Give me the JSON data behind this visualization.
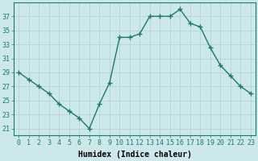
{
  "x": [
    0,
    1,
    2,
    3,
    4,
    5,
    6,
    7,
    8,
    9,
    10,
    11,
    12,
    13,
    14,
    15,
    16,
    17,
    18,
    19,
    20,
    21,
    22,
    23
  ],
  "y": [
    29,
    28,
    27,
    26,
    24.5,
    23.5,
    22.5,
    21,
    24.5,
    27.5,
    34,
    34,
    34.5,
    37,
    37,
    37,
    38,
    36,
    35.5,
    32.5,
    30,
    28.5,
    27,
    26
  ],
  "xlabel": "Humidex (Indice chaleur)",
  "line_color": "#1a7a6e",
  "bg_color": "#cce8ea",
  "grid_color": "#b0d0d4",
  "ylim_min": 20,
  "ylim_max": 39,
  "yticks": [
    21,
    23,
    25,
    27,
    29,
    31,
    33,
    35,
    37
  ],
  "xticks": [
    0,
    1,
    2,
    3,
    4,
    5,
    6,
    7,
    8,
    9,
    10,
    11,
    12,
    13,
    14,
    15,
    16,
    17,
    18,
    19,
    20,
    21,
    22,
    23
  ],
  "xtick_labels": [
    "0",
    "1",
    "2",
    "3",
    "4",
    "5",
    "6",
    "7",
    "8",
    "9",
    "10",
    "11",
    "12",
    "13",
    "14",
    "15",
    "16",
    "17",
    "18",
    "19",
    "20",
    "21",
    "22",
    "23"
  ],
  "xlabel_fontsize": 7,
  "tick_fontsize": 6,
  "marker_size": 4,
  "line_width": 1.0
}
